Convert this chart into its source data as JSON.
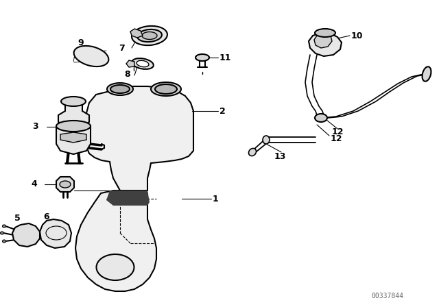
{
  "bg_color": "#ffffff",
  "line_color": "#000000",
  "watermark": "00337844",
  "fig_width": 6.4,
  "fig_height": 4.48,
  "dpi": 100
}
